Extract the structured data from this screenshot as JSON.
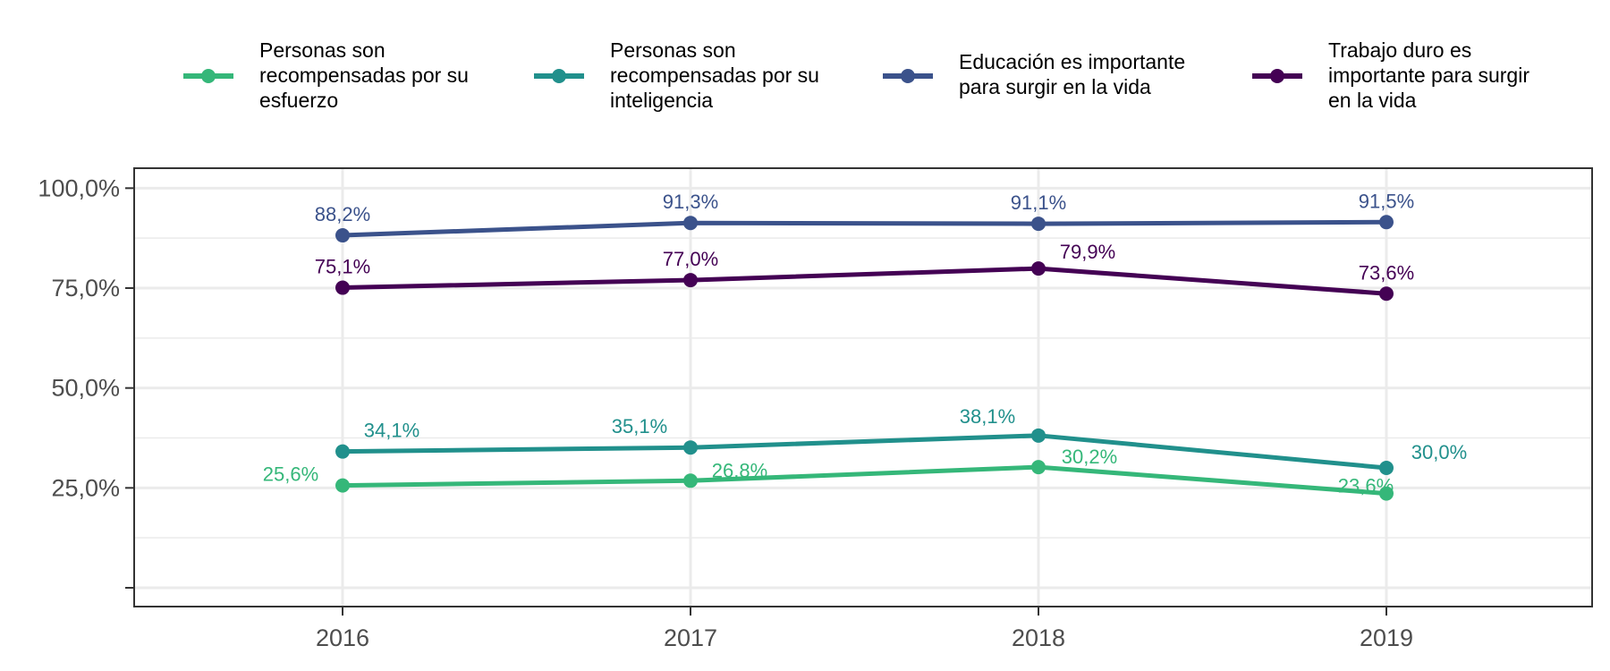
{
  "chart_data": {
    "type": "line",
    "categories": [
      "2016",
      "2017",
      "2018",
      "2019"
    ],
    "y_tick_labels": [
      "25,0%",
      "50,0%",
      "75,0%",
      "100,0%"
    ],
    "ylim": [
      0,
      1.05
    ],
    "grid": true,
    "legend_position": "top",
    "series": [
      {
        "name": "Personas son recompensadas por su esfuerzo",
        "name_lines": [
          "Personas son",
          "recompensadas por su",
          "esfuerzo"
        ],
        "color": "#35b779",
        "values": [
          0.256,
          0.268,
          0.302,
          0.236
        ],
        "labels": [
          "25,6%",
          "26,8%",
          "30,2%",
          "23,6%"
        ]
      },
      {
        "name": "Personas son recompensadas por su inteligencia",
        "name_lines": [
          "Personas son",
          "recompensadas por su",
          "inteligencia"
        ],
        "color": "#21908c",
        "values": [
          0.341,
          0.351,
          0.381,
          0.3
        ],
        "labels": [
          "34,1%",
          "35,1%",
          "38,1%",
          "30,0%"
        ]
      },
      {
        "name": "Educación es importante para surgir en la vida",
        "name_lines": [
          "Educación es importante",
          "para surgir en la vida"
        ],
        "color": "#3b528b",
        "values": [
          0.882,
          0.913,
          0.911,
          0.915
        ],
        "labels": [
          "88,2%",
          "91,3%",
          "91,1%",
          "91,5%"
        ]
      },
      {
        "name": "Trabajo duro es importante para surgir en la vida",
        "name_lines": [
          "Trabajo duro es",
          "importante para surgir",
          "en la vida"
        ],
        "color": "#440154",
        "values": [
          0.751,
          0.77,
          0.799,
          0.736
        ],
        "labels": [
          "75,1%",
          "77,0%",
          "79,9%",
          "73,6%"
        ]
      }
    ]
  }
}
